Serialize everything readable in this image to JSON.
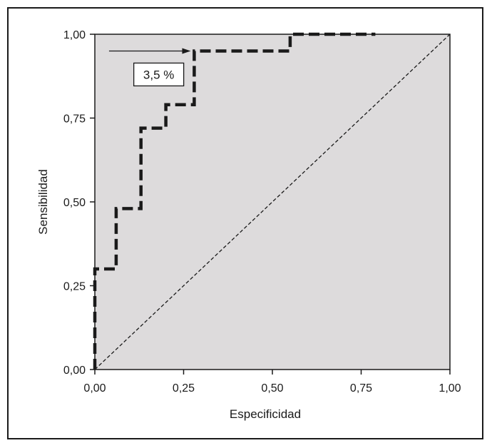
{
  "chart_data": {
    "type": "line",
    "title": "",
    "xlabel": "Especificidad",
    "ylabel": "Sensibilidad",
    "xlim": [
      0,
      1
    ],
    "ylim": [
      0,
      1
    ],
    "x_ticks": [
      "0,00",
      "0,25",
      "0,50",
      "0,75",
      "1,00"
    ],
    "y_ticks": [
      "0,00",
      "0,25",
      "0,50",
      "0,75",
      "1,00"
    ],
    "grid": false,
    "plot_background": "#dddbdc",
    "series": [
      {
        "style": "dashed-thick",
        "color": "#1a1a1a",
        "x": [
          0.0,
          0.0,
          0.06,
          0.06,
          0.13,
          0.13,
          0.2,
          0.2,
          0.28,
          0.28,
          0.55,
          0.55,
          0.79
        ],
        "y": [
          0.0,
          0.3,
          0.3,
          0.48,
          0.48,
          0.72,
          0.72,
          0.79,
          0.79,
          0.95,
          0.95,
          1.0,
          1.0
        ]
      },
      {
        "style": "dashed-thin",
        "color": "#1a1a1a",
        "x": [
          0,
          1
        ],
        "y": [
          0,
          1
        ]
      }
    ],
    "annotations": [
      {
        "text": "3,5 %",
        "box_at": [
          0.18,
          0.88
        ],
        "arrow_from": [
          0.04,
          0.95
        ],
        "arrow_to": [
          0.27,
          0.95
        ]
      }
    ]
  }
}
